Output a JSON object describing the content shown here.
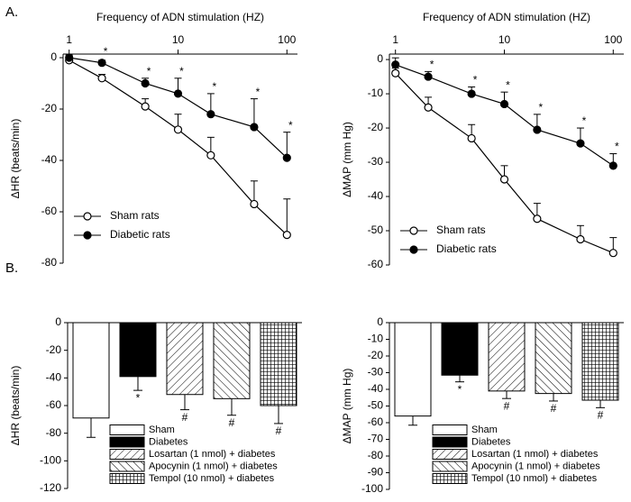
{
  "chart_data": [
    {
      "type": "line",
      "panel": "A.",
      "title": "Frequency of ADN stimulation (HZ)",
      "y_label": "ΔHR (beats/min)",
      "x": [
        1,
        2,
        5,
        10,
        20,
        50,
        100
      ],
      "xscale": "log",
      "xlim": [
        0.88,
        125
      ],
      "xticks": [
        1,
        10,
        100
      ],
      "ylim": [
        -80,
        1.4
      ],
      "yticks": [
        0,
        -20,
        -40,
        -60,
        -80
      ],
      "legend": "lower left",
      "error_direction": "up",
      "series": [
        {
          "name": "Sham rats",
          "marker": "open",
          "color": "#000000",
          "values": [
            -1,
            -8,
            -19,
            -28,
            -38,
            -57,
            -69
          ],
          "errors": [
            1,
            1.5,
            3,
            6,
            7,
            9,
            14
          ]
        },
        {
          "name": "Diabetic rats",
          "marker": "filled",
          "color": "#000000",
          "values": [
            0,
            -2,
            -10,
            -14,
            -22,
            -27,
            -39
          ],
          "errors": [
            1,
            1,
            2,
            6,
            8,
            11,
            10
          ]
        }
      ],
      "annotations": [
        {
          "text": "*",
          "series": 1,
          "x": 2
        },
        {
          "text": "*",
          "series": 1,
          "x": 5
        },
        {
          "text": "*",
          "series": 1,
          "x": 10
        },
        {
          "text": "*",
          "series": 1,
          "x": 20
        },
        {
          "text": "*",
          "series": 1,
          "x": 50
        },
        {
          "text": "*",
          "series": 1,
          "x": 100
        }
      ]
    },
    {
      "type": "line",
      "title": "Frequency of ADN stimulation (HZ)",
      "y_label": "ΔMAP (mm Hg)",
      "x": [
        1,
        2,
        5,
        10,
        20,
        50,
        100
      ],
      "xscale": "log",
      "xlim": [
        0.88,
        125
      ],
      "xticks": [
        1,
        10,
        100
      ],
      "ylim": [
        -60,
        1.6
      ],
      "yticks": [
        0,
        -10,
        -20,
        -30,
        -40,
        -50,
        -60
      ],
      "legend": "lower left",
      "error_direction": "up",
      "series": [
        {
          "name": "Sham rats",
          "marker": "open",
          "color": "#000000",
          "values": [
            -4,
            -14,
            -23,
            -35,
            -46.5,
            -52.5,
            -56.5
          ],
          "errors": [
            1.5,
            3,
            4,
            4,
            4.5,
            4,
            4.5
          ]
        },
        {
          "name": "Diabetic rats",
          "marker": "filled",
          "color": "#000000",
          "values": [
            -1.5,
            -5,
            -10,
            -13,
            -20.5,
            -24.5,
            -31
          ],
          "errors": [
            2,
            1.5,
            2,
            3.5,
            4.5,
            4.5,
            3.5
          ]
        }
      ],
      "annotations": [
        {
          "text": "*",
          "series": 1,
          "x": 2
        },
        {
          "text": "*",
          "series": 1,
          "x": 5
        },
        {
          "text": "*",
          "series": 1,
          "x": 10
        },
        {
          "text": "*",
          "series": 1,
          "x": 20
        },
        {
          "text": "*",
          "series": 1,
          "x": 50
        },
        {
          "text": "*",
          "series": 1,
          "x": 100
        }
      ]
    },
    {
      "type": "bar",
      "panel": "B.",
      "y_label": "ΔHR (beats/min)",
      "categories": [
        "Sham",
        "Diabetes",
        "Losartan (1 nmol) + diabetes",
        "Apocynin (1 nmol) + diabetes",
        "Tempol (10 nmol) + diabetes"
      ],
      "values": [
        -69,
        -39,
        -52,
        -55,
        -60
      ],
      "errors": [
        14,
        10,
        11,
        12,
        13
      ],
      "error_direction": "down",
      "fills": [
        "white",
        "black",
        "hatch-forward",
        "hatch-back",
        "grid"
      ],
      "annotations": [
        null,
        "*",
        "#",
        "#",
        "#"
      ],
      "legend": "lower right",
      "ylim": [
        -120,
        0
      ],
      "yticks": [
        0,
        -20,
        -40,
        -60,
        -80,
        -100,
        -120
      ]
    },
    {
      "type": "bar",
      "y_label": "ΔMAP (mm Hg)",
      "categories": [
        "Sham",
        "Diabetes",
        "Losartan (1 nmol) + diabetes",
        "Apocynin (1 nmol) + diabetes",
        "Tempol (10 nmol) + diabetes"
      ],
      "values": [
        -56,
        -31.5,
        -41,
        -42.5,
        -46.5
      ],
      "errors": [
        5.5,
        4,
        4.5,
        4.5,
        4.5
      ],
      "error_direction": "down",
      "fills": [
        "white",
        "black",
        "hatch-forward",
        "hatch-back",
        "grid"
      ],
      "annotations": [
        null,
        "*",
        "#",
        "#",
        "#"
      ],
      "legend": "lower right",
      "ylim": [
        -100,
        0
      ],
      "yticks": [
        0,
        -10,
        -20,
        -30,
        -40,
        -50,
        -60,
        -70,
        -80,
        -90,
        -100
      ]
    }
  ]
}
